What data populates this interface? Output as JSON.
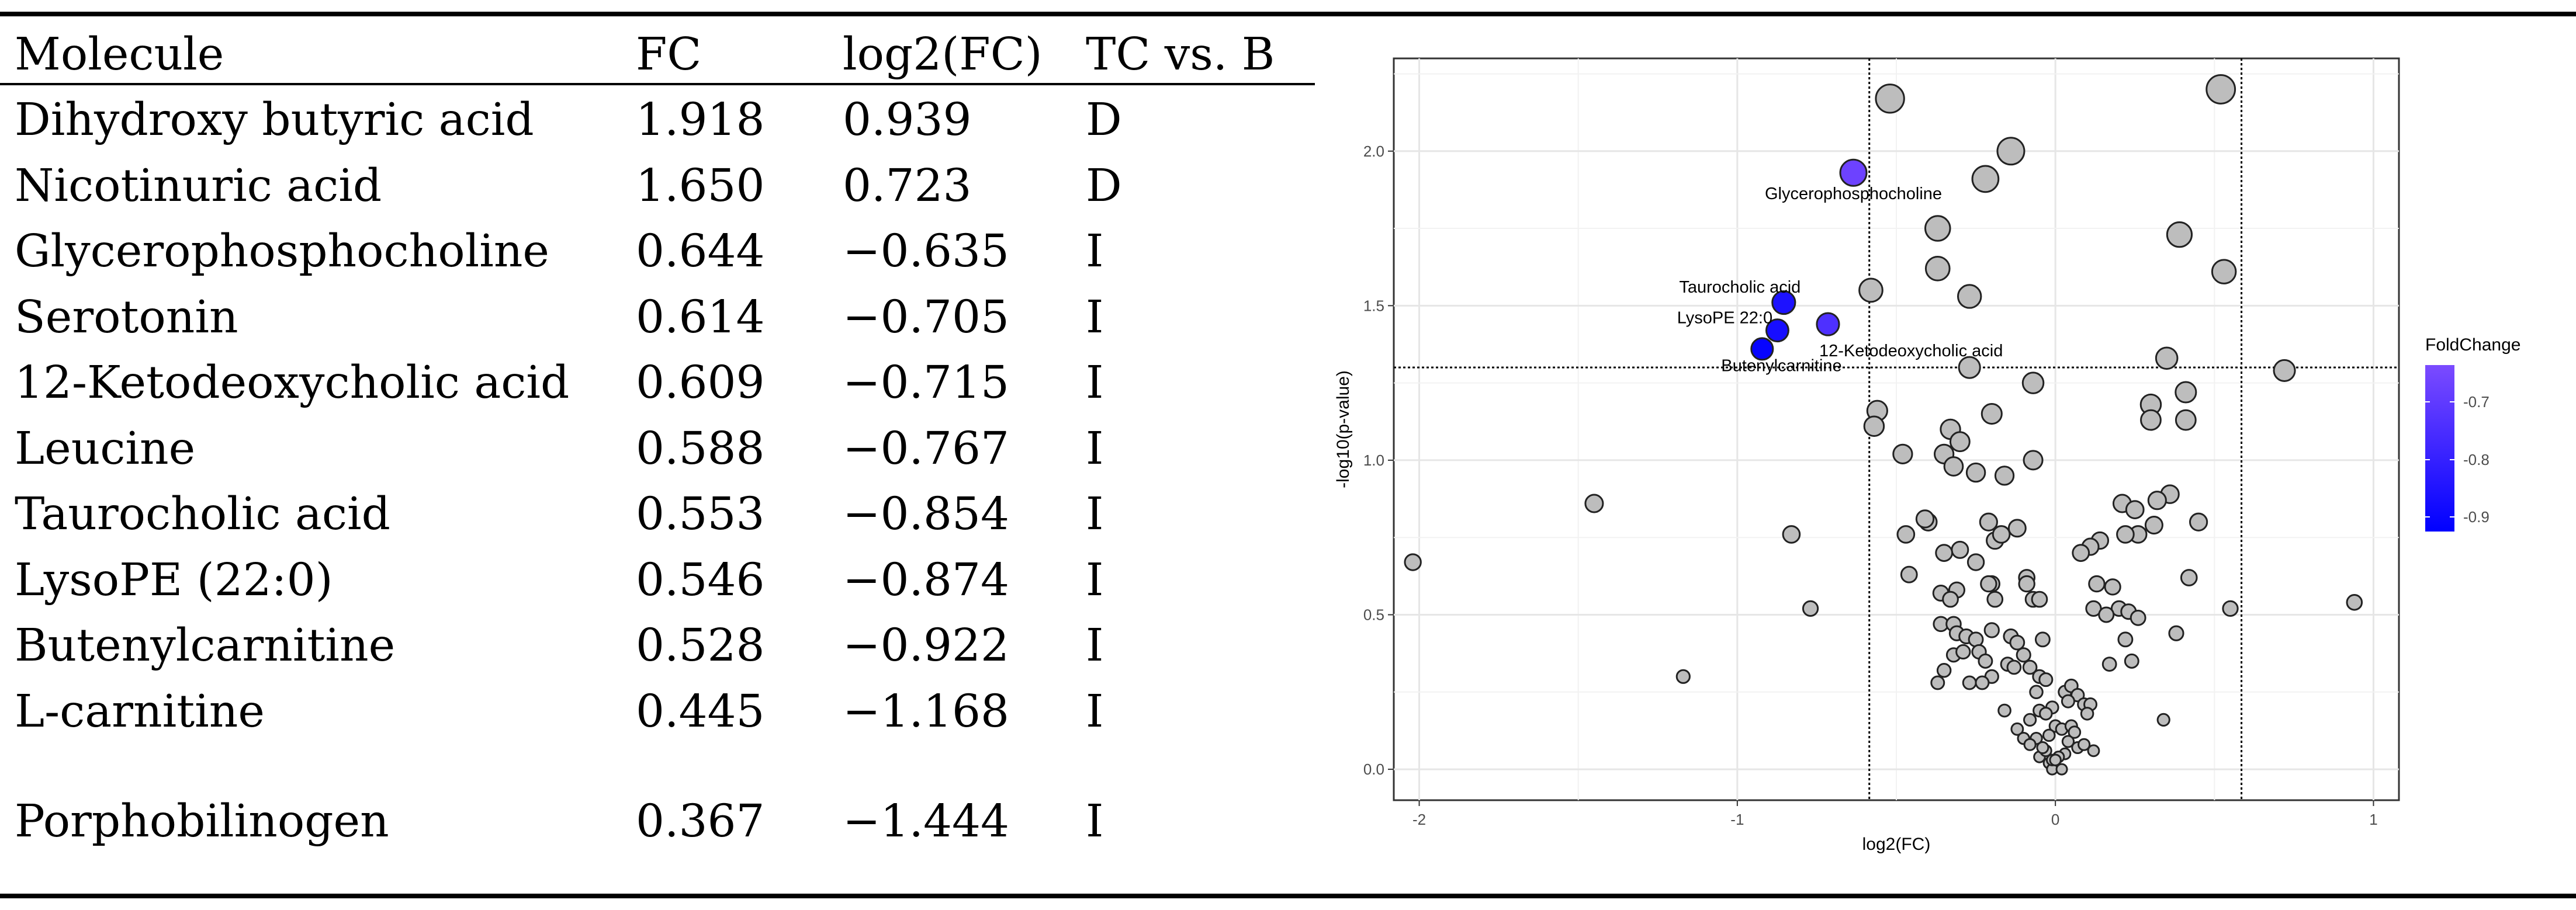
{
  "table": {
    "headers": [
      "Molecule",
      "FC",
      "log2(FC)",
      "TC vs. B"
    ],
    "rows": [
      {
        "molecule": "Dihydroxy butyric acid",
        "fc": "1.918",
        "log2fc": "0.939",
        "tc_vs_b": "D"
      },
      {
        "molecule": "Nicotinuric acid",
        "fc": "1.650",
        "log2fc": "0.723",
        "tc_vs_b": "D"
      },
      {
        "molecule": "Glycerophosphocholine",
        "fc": "0.644",
        "log2fc": "−0.635",
        "tc_vs_b": "I"
      },
      {
        "molecule": "Serotonin",
        "fc": "0.614",
        "log2fc": "−0.705",
        "tc_vs_b": "I"
      },
      {
        "molecule": "12-Ketodeoxycholic acid",
        "fc": "0.609",
        "log2fc": "−0.715",
        "tc_vs_b": "I"
      },
      {
        "molecule": "Leucine",
        "fc": "0.588",
        "log2fc": "−0.767",
        "tc_vs_b": "I"
      },
      {
        "molecule": "Taurocholic acid",
        "fc": "0.553",
        "log2fc": "−0.854",
        "tc_vs_b": "I"
      },
      {
        "molecule": "LysoPE (22:0)",
        "fc": "0.546",
        "log2fc": "−0.874",
        "tc_vs_b": "I"
      },
      {
        "molecule": "Butenylcarnitine",
        "fc": "0.528",
        "log2fc": "−0.922",
        "tc_vs_b": "I"
      },
      {
        "molecule": "L-carnitine",
        "fc": "0.445",
        "log2fc": "−1.168",
        "tc_vs_b": "I"
      },
      {
        "molecule": "Porphobilinogen",
        "fc": "0.367",
        "log2fc": "−1.444",
        "tc_vs_b": "I"
      }
    ]
  },
  "chart_data": {
    "type": "scatter",
    "title": "",
    "xlabel": "log2(FC)",
    "ylabel": "-log10(p-value)",
    "xlim": [
      -2.08,
      1.08
    ],
    "ylim": [
      -0.1,
      2.3
    ],
    "x_ticks": [
      -2,
      -1,
      0,
      1
    ],
    "x_tick_labels": [
      "-2",
      "-1",
      "0",
      "1"
    ],
    "y_ticks": [
      0.0,
      0.5,
      1.0,
      1.5,
      2.0
    ],
    "y_tick_labels": [
      "0.0",
      "0.5",
      "1.0",
      "1.5",
      "2.0"
    ],
    "threshold_lines": {
      "x": [
        -0.585,
        0.585
      ],
      "y": [
        1.3
      ]
    },
    "grid": true,
    "legend": {
      "title": "FoldChange",
      "position": "right",
      "labels": [
        "-0.7",
        "-0.8",
        "-0.9"
      ],
      "color_low": "#0000ff",
      "color_high": "#7b4bff"
    },
    "highlighted": [
      {
        "name": "Glycerophosphocholine",
        "x": -0.635,
        "y": 1.93,
        "fc": 0.644
      },
      {
        "name": "Taurocholic acid",
        "x": -0.854,
        "y": 1.51,
        "fc": 0.553
      },
      {
        "name": "LysoPE 22:0",
        "x": -0.874,
        "y": 1.42,
        "fc": 0.546
      },
      {
        "name": "12-Ketodeoxycholic acid",
        "x": -0.715,
        "y": 1.44,
        "fc": 0.609
      },
      {
        "name": "Butenylcarnitine",
        "x": -0.922,
        "y": 1.36,
        "fc": 0.528
      }
    ],
    "other_points": [
      [
        -2.02,
        0.67
      ],
      [
        -1.45,
        0.86
      ],
      [
        -1.17,
        0.3
      ],
      [
        -0.83,
        0.76
      ],
      [
        -0.77,
        0.52
      ],
      [
        -0.52,
        2.17
      ],
      [
        -0.14,
        2.0
      ],
      [
        0.52,
        2.2
      ],
      [
        -0.22,
        1.91
      ],
      [
        0.39,
        1.73
      ],
      [
        -0.37,
        1.75
      ],
      [
        -0.37,
        1.62
      ],
      [
        0.53,
        1.61
      ],
      [
        -0.58,
        1.55
      ],
      [
        -0.27,
        1.53
      ],
      [
        -0.27,
        1.3
      ],
      [
        0.35,
        1.33
      ],
      [
        0.72,
        1.29
      ],
      [
        -0.07,
        1.25
      ],
      [
        0.41,
        1.22
      ],
      [
        0.3,
        1.18
      ],
      [
        -0.56,
        1.16
      ],
      [
        -0.2,
        1.15
      ],
      [
        0.3,
        1.13
      ],
      [
        0.41,
        1.13
      ],
      [
        -0.57,
        1.11
      ],
      [
        -0.33,
        1.1
      ],
      [
        -0.3,
        1.06
      ],
      [
        -0.48,
        1.02
      ],
      [
        -0.35,
        1.02
      ],
      [
        -0.07,
        1.0
      ],
      [
        -0.32,
        0.98
      ],
      [
        -0.25,
        0.96
      ],
      [
        -0.16,
        0.95
      ],
      [
        0.36,
        0.89
      ],
      [
        0.32,
        0.87
      ],
      [
        0.21,
        0.86
      ],
      [
        0.25,
        0.84
      ],
      [
        0.26,
        0.76
      ],
      [
        0.45,
        0.8
      ],
      [
        -0.47,
        0.76
      ],
      [
        -0.4,
        0.8
      ],
      [
        -0.41,
        0.81
      ],
      [
        -0.12,
        0.78
      ],
      [
        -0.21,
        0.8
      ],
      [
        0.31,
        0.79
      ],
      [
        -0.19,
        0.74
      ],
      [
        -0.17,
        0.76
      ],
      [
        0.22,
        0.76
      ],
      [
        0.14,
        0.74
      ],
      [
        0.11,
        0.72
      ],
      [
        -0.3,
        0.71
      ],
      [
        -0.35,
        0.7
      ],
      [
        0.08,
        0.7
      ],
      [
        -0.25,
        0.67
      ],
      [
        0.42,
        0.62
      ],
      [
        -0.46,
        0.63
      ],
      [
        -0.2,
        0.6
      ],
      [
        -0.21,
        0.6
      ],
      [
        0.13,
        0.6
      ],
      [
        0.18,
        0.59
      ],
      [
        -0.09,
        0.62
      ],
      [
        -0.09,
        0.6
      ],
      [
        -0.31,
        0.58
      ],
      [
        -0.36,
        0.57
      ],
      [
        -0.33,
        0.55
      ],
      [
        -0.19,
        0.55
      ],
      [
        0.12,
        0.52
      ],
      [
        -0.07,
        0.55
      ],
      [
        -0.05,
        0.55
      ],
      [
        0.2,
        0.52
      ],
      [
        0.23,
        0.51
      ],
      [
        0.16,
        0.5
      ],
      [
        0.26,
        0.49
      ],
      [
        0.38,
        0.44
      ],
      [
        -0.36,
        0.47
      ],
      [
        -0.32,
        0.47
      ],
      [
        -0.31,
        0.44
      ],
      [
        -0.28,
        0.43
      ],
      [
        -0.2,
        0.45
      ],
      [
        -0.14,
        0.43
      ],
      [
        -0.12,
        0.41
      ],
      [
        -0.25,
        0.42
      ],
      [
        -0.04,
        0.42
      ],
      [
        0.22,
        0.42
      ],
      [
        0.24,
        0.35
      ],
      [
        0.17,
        0.34
      ],
      [
        -0.1,
        0.37
      ],
      [
        -0.32,
        0.37
      ],
      [
        -0.29,
        0.38
      ],
      [
        -0.24,
        0.38
      ],
      [
        -0.22,
        0.35
      ],
      [
        -0.15,
        0.34
      ],
      [
        -0.13,
        0.33
      ],
      [
        -0.08,
        0.33
      ],
      [
        -0.05,
        0.3
      ],
      [
        -0.03,
        0.29
      ],
      [
        -0.35,
        0.32
      ],
      [
        -0.2,
        0.3
      ],
      [
        -0.27,
        0.28
      ],
      [
        -0.23,
        0.28
      ],
      [
        -0.37,
        0.28
      ],
      [
        -0.06,
        0.25
      ],
      [
        0.03,
        0.25
      ],
      [
        0.05,
        0.27
      ],
      [
        0.07,
        0.24
      ],
      [
        0.04,
        0.22
      ],
      [
        0.09,
        0.21
      ],
      [
        0.11,
        0.21
      ],
      [
        -0.01,
        0.2
      ],
      [
        -0.05,
        0.19
      ],
      [
        -0.03,
        0.18
      ],
      [
        0.1,
        0.18
      ],
      [
        -0.08,
        0.16
      ],
      [
        0.0,
        0.14
      ],
      [
        0.02,
        0.13
      ],
      [
        -0.12,
        0.13
      ],
      [
        0.05,
        0.14
      ],
      [
        0.06,
        0.12
      ],
      [
        -0.02,
        0.11
      ],
      [
        -0.1,
        0.1
      ],
      [
        -0.16,
        0.19
      ],
      [
        0.34,
        0.16
      ],
      [
        0.07,
        0.07
      ],
      [
        0.03,
        0.05
      ],
      [
        -0.05,
        0.04
      ],
      [
        0.01,
        0.04
      ],
      [
        -0.02,
        0.02
      ],
      [
        0.0,
        0.01
      ],
      [
        -0.01,
        0.0
      ],
      [
        0.02,
        0.0
      ],
      [
        -0.03,
        0.06
      ],
      [
        -0.01,
        0.03
      ],
      [
        0.04,
        0.09
      ],
      [
        -0.06,
        0.1
      ],
      [
        0.09,
        0.08
      ],
      [
        -0.08,
        0.08
      ],
      [
        0.12,
        0.06
      ],
      [
        -0.04,
        0.07
      ],
      [
        0.0,
        0.03
      ],
      [
        0.94,
        0.54
      ],
      [
        0.55,
        0.52
      ]
    ]
  }
}
